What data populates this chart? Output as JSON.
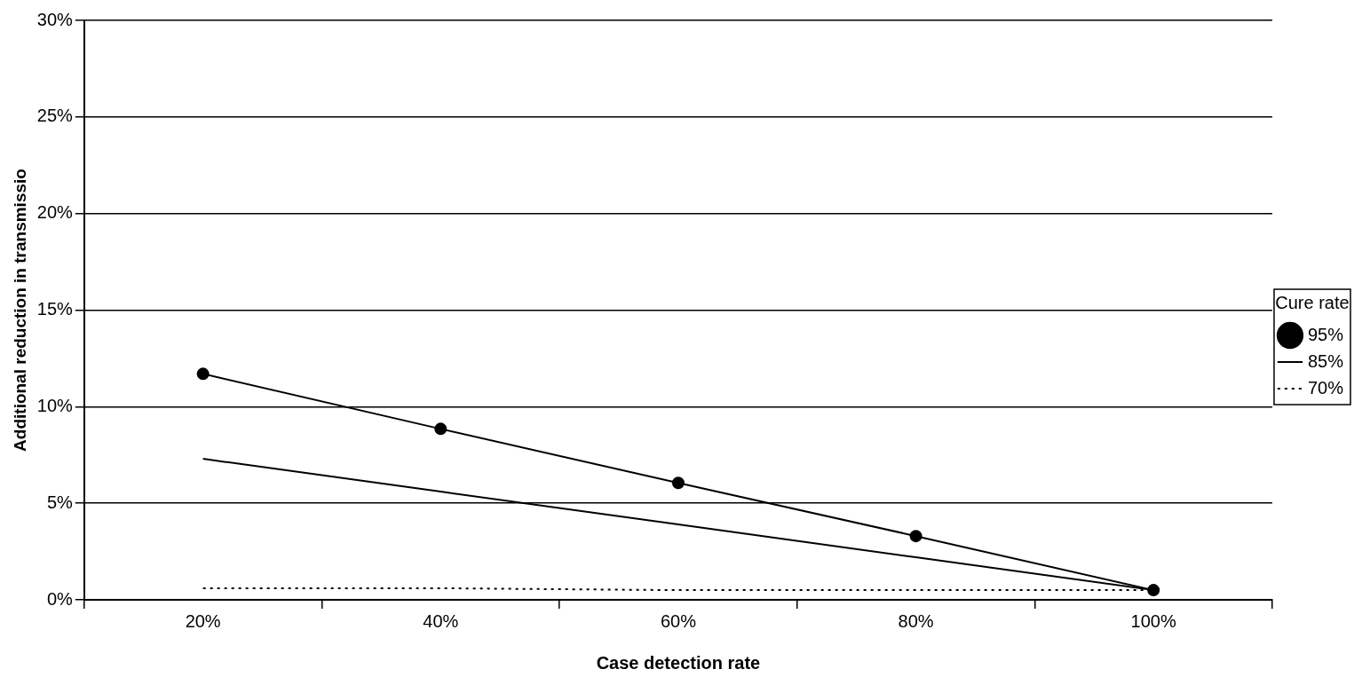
{
  "chart_data": {
    "type": "line",
    "xlabel": "Case detection rate",
    "ylabel": "Additional reduction in transmissio",
    "legend_title": "Cure rate",
    "categories": [
      "20%",
      "40%",
      "60%",
      "80%",
      "100%"
    ],
    "series": [
      {
        "name": "95%",
        "color": "#000000",
        "marker": "circle",
        "line_style": "solid",
        "values": [
          11.7,
          8.85,
          6.05,
          3.3,
          0.5
        ]
      },
      {
        "name": "85%",
        "color": "#000000",
        "marker": "none",
        "line_style": "solid",
        "values": [
          7.3,
          5.6,
          3.9,
          2.2,
          0.5
        ]
      },
      {
        "name": "70%",
        "color": "#000000",
        "marker": "none",
        "line_style": "dotted",
        "values": [
          0.6,
          0.6,
          0.5,
          0.5,
          0.5
        ]
      }
    ],
    "ylim": [
      0,
      30
    ],
    "yticks": [
      {
        "value": 0,
        "label": "0%"
      },
      {
        "value": 5,
        "label": "5%"
      },
      {
        "value": 10,
        "label": "10%"
      },
      {
        "value": 15,
        "label": "15%"
      },
      {
        "value": 20,
        "label": "20%"
      },
      {
        "value": 25,
        "label": "25%"
      },
      {
        "value": 30,
        "label": "30%"
      }
    ],
    "grid": "y",
    "legend": "right"
  }
}
